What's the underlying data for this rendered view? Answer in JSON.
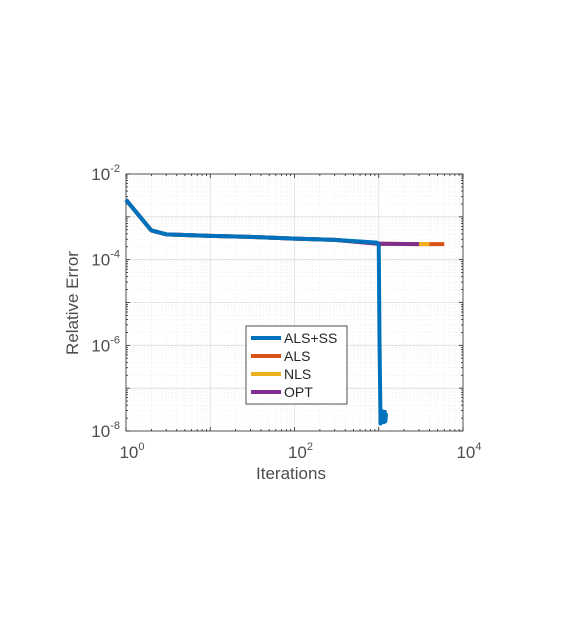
{
  "chart_data": {
    "type": "line",
    "xlabel": "Iterations",
    "ylabel": "Relative Error",
    "xscale": "log",
    "yscale": "log",
    "xlim": [
      1,
      10000
    ],
    "ylim": [
      1e-08,
      0.01
    ],
    "grid": true,
    "minor_grid": true,
    "legend_position": "bottom-center",
    "x_ticks": [
      {
        "base": "10",
        "exp": "0",
        "value": 1
      },
      {
        "base": "10",
        "exp": "2",
        "value": 100
      },
      {
        "base": "10",
        "exp": "4",
        "value": 10000
      }
    ],
    "y_ticks": [
      {
        "base": "10",
        "exp": "-2",
        "value": 0.01
      },
      {
        "base": "10",
        "exp": "-4",
        "value": 0.0001
      },
      {
        "base": "10",
        "exp": "-6",
        "value": 1e-06
      },
      {
        "base": "10",
        "exp": "-8",
        "value": 1e-08
      }
    ],
    "series": [
      {
        "name": "ALS+SS",
        "color": "#0072bd",
        "x": [
          1,
          2,
          3,
          10,
          30,
          100,
          300,
          700,
          950,
          1000,
          1020,
          1050,
          1080,
          1100,
          1130,
          1150,
          1180,
          1200,
          1220
        ],
        "y": [
          0.0025,
          0.00048,
          0.00039,
          0.00036,
          0.00034,
          0.00031,
          0.00029,
          0.00026,
          0.00025,
          0.00022,
          1.5e-06,
          1.5e-08,
          3e-08,
          1.8e-08,
          2.5e-08,
          1.6e-08,
          2.8e-08,
          1.7e-08,
          2.6e-08
        ]
      },
      {
        "name": "ALS",
        "color": "#d95319",
        "x": [
          1,
          2,
          3,
          10,
          30,
          100,
          300,
          700,
          1000,
          2000,
          3000,
          6000
        ],
        "y": [
          0.0025,
          0.00048,
          0.00039,
          0.00036,
          0.00034,
          0.00031,
          0.00029,
          0.00025,
          0.000235,
          0.000232,
          0.00023,
          0.00023
        ]
      },
      {
        "name": "NLS",
        "color": "#edb120",
        "x": [
          1,
          2,
          3,
          10,
          30,
          100,
          300,
          700,
          1000,
          2000,
          4000
        ],
        "y": [
          0.0025,
          0.00048,
          0.00039,
          0.00036,
          0.00034,
          0.00031,
          0.00029,
          0.00025,
          0.000235,
          0.000232,
          0.00023
        ]
      },
      {
        "name": "OPT",
        "color": "#7e2f8e",
        "x": [
          1,
          2,
          3,
          10,
          30,
          100,
          300,
          700,
          1000,
          2000,
          3000
        ],
        "y": [
          0.0025,
          0.00048,
          0.00039,
          0.00036,
          0.00034,
          0.00031,
          0.00029,
          0.00025,
          0.000235,
          0.000232,
          0.00023
        ]
      }
    ]
  }
}
